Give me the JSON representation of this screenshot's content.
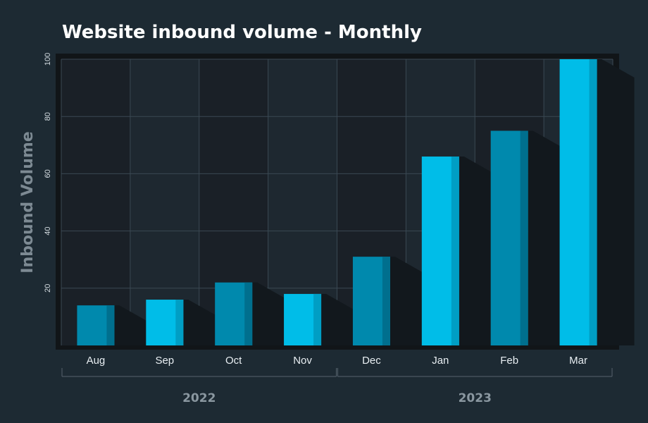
{
  "chart_data": {
    "type": "bar",
    "title": "Website inbound volume - Monthly",
    "xlabel": "",
    "ylabel": "Inbound Volume",
    "categories": [
      "Aug",
      "Sep",
      "Oct",
      "Nov",
      "Dec",
      "Jan",
      "Feb",
      "Mar"
    ],
    "values": [
      14,
      16,
      22,
      18,
      31,
      66,
      75,
      100
    ],
    "ylim": [
      0,
      100
    ],
    "yticks": [
      20,
      40,
      60,
      80,
      100
    ],
    "groups": [
      {
        "label": "2022",
        "categories": [
          "Aug",
          "Sep",
          "Oct",
          "Nov"
        ]
      },
      {
        "label": "2023",
        "categories": [
          "Dec",
          "Jan",
          "Feb",
          "Mar"
        ]
      }
    ],
    "grid": true,
    "legend": "none",
    "colors": {
      "background": "#1d2a33",
      "bar_dark": "#0089ad",
      "bar_dark_edge": "#006f8e",
      "bar_light": "#00bde8",
      "bar_light_edge": "#009ec4",
      "plot_bg_a": "#1a2027",
      "plot_bg_b": "#1e2830",
      "shadow": "#12181d",
      "grid": "#3a4853"
    }
  }
}
